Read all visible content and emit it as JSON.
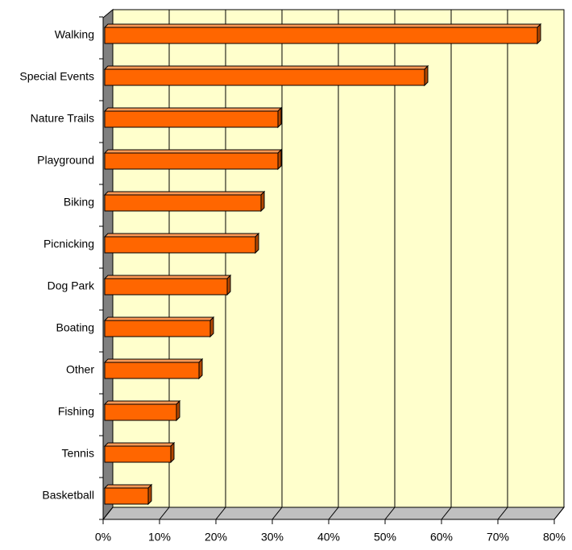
{
  "chart_data": {
    "type": "bar",
    "orientation": "horizontal",
    "categories": [
      "Walking",
      "Special Events",
      "Nature Trails",
      "Playground",
      "Biking",
      "Picnicking",
      "Dog Park",
      "Boating",
      "Other",
      "Fishing",
      "Tennis",
      "Basketball"
    ],
    "values": [
      77,
      57,
      31,
      31,
      28,
      27,
      22,
      19,
      17,
      13,
      12,
      8
    ],
    "color": "#ff6600",
    "xlim": [
      0,
      80
    ],
    "xticks": [
      {
        "value": 0,
        "label": "0%"
      },
      {
        "value": 10,
        "label": "10%"
      },
      {
        "value": 20,
        "label": "20%"
      },
      {
        "value": 30,
        "label": "30%"
      },
      {
        "value": 40,
        "label": "40%"
      },
      {
        "value": 50,
        "label": "50%"
      },
      {
        "value": 60,
        "label": "60%"
      },
      {
        "value": 70,
        "label": "70%"
      },
      {
        "value": 80,
        "label": "80%"
      }
    ],
    "grid": true
  }
}
